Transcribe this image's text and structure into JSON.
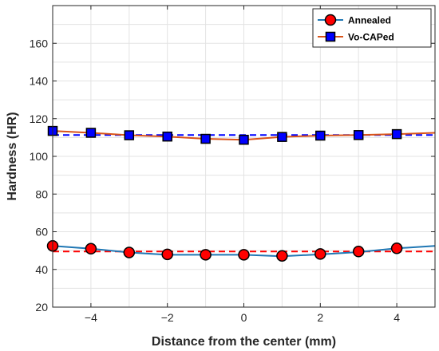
{
  "chart_data": {
    "type": "line",
    "xlabel": "Distance from the center (mm)",
    "ylabel": "Hardness (HR)",
    "xlim": [
      -5,
      5
    ],
    "ylim": [
      20,
      180
    ],
    "xticks": [
      -4,
      -2,
      0,
      2,
      4
    ],
    "xtick_labels": [
      "−4",
      "−2",
      "0",
      "2",
      "4"
    ],
    "yticks": [
      20,
      40,
      60,
      80,
      100,
      120,
      140,
      160
    ],
    "yminor_step": 10,
    "grid": true,
    "legend_position": "top-right",
    "series": [
      {
        "name": "Annealed",
        "color": "#1f77b4",
        "marker": "circle",
        "marker_face": "#ff0000",
        "marker_edge": "#000000",
        "mean": 49.5,
        "mean_line_color": "#ff0000",
        "line_x": [
          -5,
          -4,
          -3,
          -2,
          -1,
          0,
          1,
          2,
          3,
          4,
          5
        ],
        "line_y": [
          52.5,
          51,
          49,
          47.8,
          47.8,
          47.8,
          47,
          48,
          49.2,
          51.2,
          52.5
        ],
        "marker_x": [
          -5,
          -4,
          -3,
          -2,
          -1,
          0,
          1,
          2,
          3,
          4
        ],
        "marker_y": [
          52.5,
          51,
          49,
          48,
          47.8,
          47.8,
          47.2,
          48.2,
          49.5,
          51.2
        ]
      },
      {
        "name": "Vo-CAPed",
        "color": "#d95319",
        "marker": "square",
        "marker_face": "#0000ff",
        "marker_edge": "#000000",
        "mean": 111.3,
        "mean_line_color": "#0000ff",
        "line_x": [
          -5,
          -4,
          -3,
          -2,
          -1,
          0,
          1,
          2,
          3,
          4,
          5
        ],
        "line_y": [
          113.5,
          112.5,
          111.2,
          110.5,
          109.3,
          108.8,
          110.3,
          111,
          111.3,
          111.8,
          112.5
        ],
        "marker_x": [
          -5,
          -4,
          -3,
          -2,
          -1,
          0,
          1,
          2,
          3,
          4
        ],
        "marker_y": [
          113.5,
          112.5,
          111.2,
          110.5,
          109.3,
          108.8,
          110.3,
          111,
          111.3,
          111.8
        ]
      }
    ]
  }
}
